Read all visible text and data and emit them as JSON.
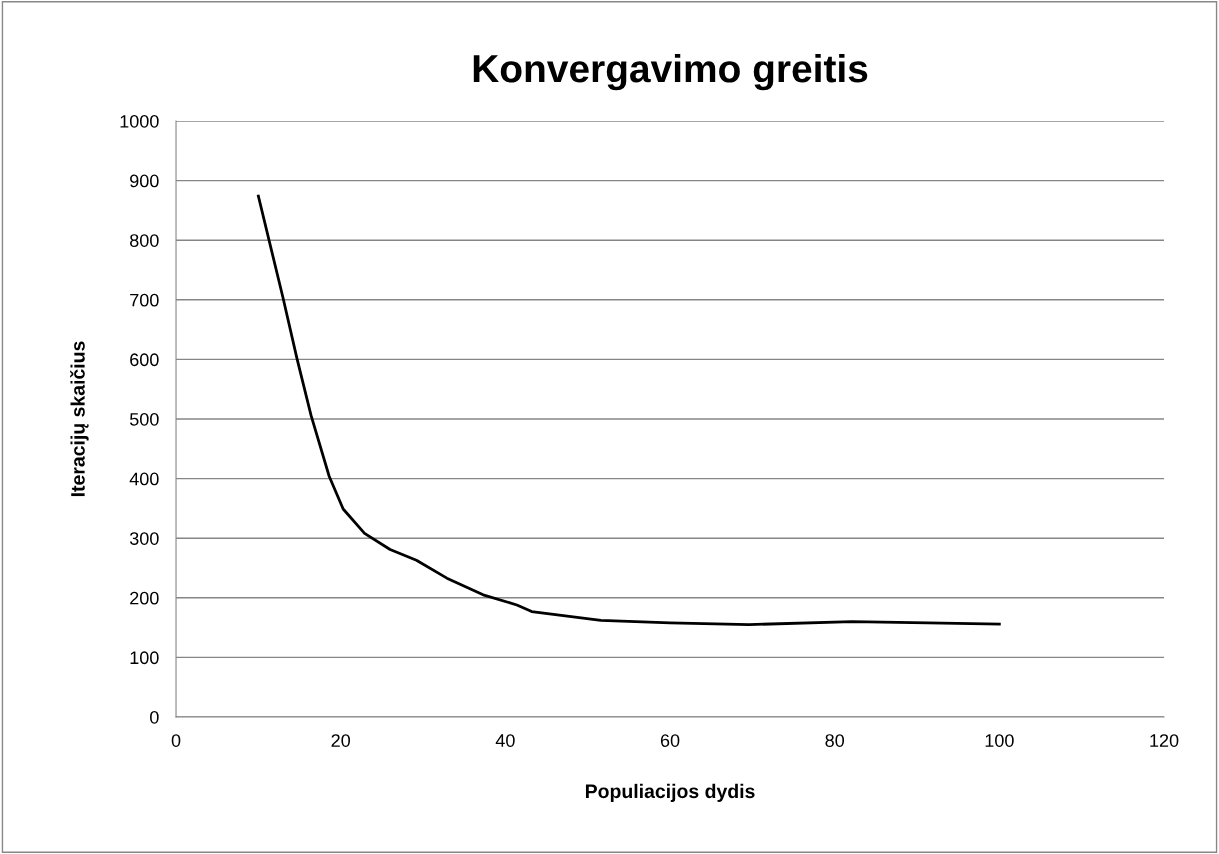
{
  "chart_data": {
    "type": "line",
    "title": "Konvergavimo greitis",
    "xlabel": "Populiacijos dydis",
    "ylabel": "Iteracijų skaičius",
    "x": [
      10,
      13,
      14.7,
      16.4,
      18.6,
      20.3,
      22.9,
      26,
      29.2,
      32.9,
      37.3,
      41.4,
      43.2,
      51.6,
      60,
      69.6,
      82.1,
      91.3,
      100
    ],
    "series": [
      {
        "color": "#000000",
        "values": [
          874,
          703,
          601,
          506,
          404,
          349,
          308,
          281,
          263,
          233,
          205,
          188,
          177,
          162,
          158,
          155,
          160,
          158,
          156
        ]
      }
    ],
    "xlim": [
      0,
      120
    ],
    "xticks": [
      0,
      20,
      40,
      60,
      80,
      100,
      120
    ],
    "ylim": [
      0,
      1000
    ],
    "yticks": [
      0,
      100,
      200,
      300,
      400,
      500,
      600,
      700,
      800,
      900,
      1000
    ],
    "grid": "y",
    "legend": false,
    "marker": "none",
    "line_style": "solid"
  }
}
